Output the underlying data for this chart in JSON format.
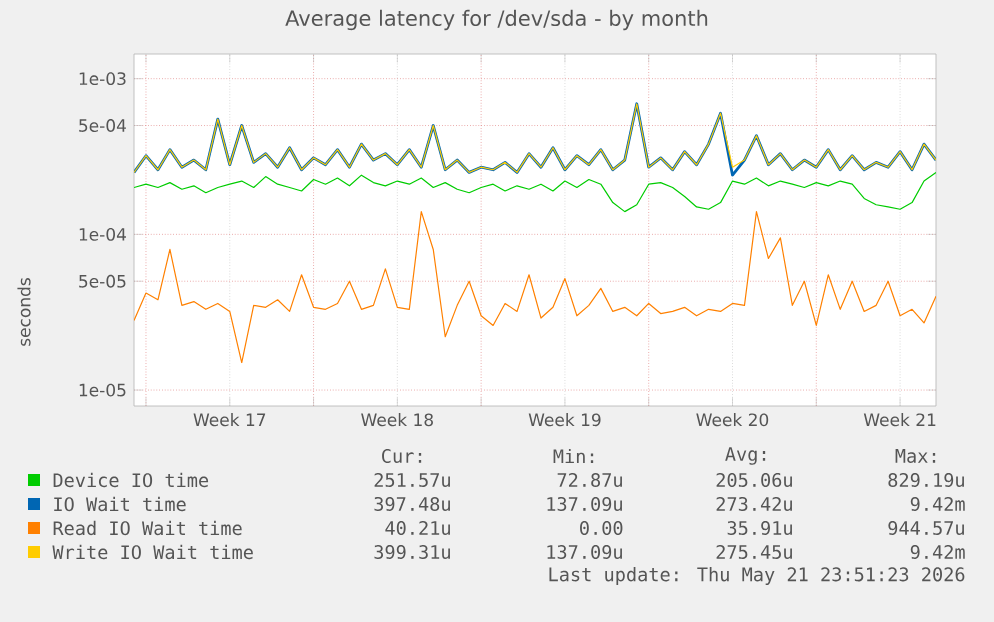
{
  "chart_data": {
    "type": "line",
    "title": "Average latency for /dev/sda - by month",
    "ylabel": "seconds",
    "log": "y",
    "ylim": [
      7.9e-06,
      0.00144
    ],
    "categories": [
      null,
      null,
      null,
      null,
      null,
      null,
      null,
      null,
      "Week 17",
      null,
      null,
      null,
      null,
      null,
      null,
      null,
      null,
      null,
      null,
      null,
      null,
      null,
      "Week 18",
      null,
      null,
      null,
      null,
      null,
      null,
      null,
      null,
      null,
      null,
      null,
      null,
      null,
      "Week 19",
      null,
      null,
      null,
      null,
      null,
      null,
      null,
      null,
      null,
      null,
      null,
      null,
      null,
      "Week 20",
      null,
      null,
      null,
      null,
      null,
      null,
      null,
      null,
      null,
      null,
      null,
      null,
      null,
      "Week 21",
      null,
      null,
      null
    ],
    "yticks": [
      {
        "value": 1e-05,
        "label": "1e-05"
      },
      {
        "value": 5e-05,
        "label": "5e-05"
      },
      {
        "value": 0.0001,
        "label": "1e-04"
      },
      {
        "value": 0.0005,
        "label": "5e-04"
      },
      {
        "value": 0.001,
        "label": "1e-03"
      }
    ],
    "grid": true,
    "legend": "bottom",
    "series": [
      {
        "name": "Device IO time",
        "color": "#00cc00",
        "values": [
          0.0002,
          0.00021,
          0.0002,
          0.000215,
          0.000195,
          0.000205,
          0.000185,
          0.0002,
          0.00021,
          0.00022,
          0.0002,
          0.000235,
          0.00021,
          0.0002,
          0.00019,
          0.000225,
          0.00021,
          0.00023,
          0.000205,
          0.00024,
          0.000215,
          0.000205,
          0.00022,
          0.00021,
          0.00023,
          0.0002,
          0.000215,
          0.000195,
          0.000185,
          0.0002,
          0.00021,
          0.00019,
          0.000205,
          0.000195,
          0.00021,
          0.00019,
          0.00022,
          0.0002,
          0.000225,
          0.00021,
          0.00016,
          0.00014,
          0.000155,
          0.00021,
          0.000215,
          0.0002,
          0.000175,
          0.00015,
          0.000145,
          0.00016,
          0.00022,
          0.00021,
          0.00023,
          0.000205,
          0.00022,
          0.00021,
          0.0002,
          0.000215,
          0.000205,
          0.00022,
          0.00021,
          0.00017,
          0.000155,
          0.00015,
          0.000145,
          0.00016,
          0.00022,
          0.00025
        ]
      },
      {
        "name": "IO Wait time",
        "color": "#0066b3",
        "values": [
          0.00025,
          0.00032,
          0.00026,
          0.00035,
          0.00027,
          0.0003,
          0.00026,
          0.00055,
          0.00028,
          0.0005,
          0.00029,
          0.00033,
          0.00027,
          0.00036,
          0.00026,
          0.00031,
          0.00028,
          0.00035,
          0.00027,
          0.00038,
          0.0003,
          0.00033,
          0.00028,
          0.00035,
          0.00027,
          0.0005,
          0.00026,
          0.0003,
          0.00025,
          0.00027,
          0.00026,
          0.00029,
          0.00025,
          0.00033,
          0.00027,
          0.00036,
          0.00026,
          0.00032,
          0.00028,
          0.00035,
          0.00026,
          0.0003,
          0.00069,
          0.00027,
          0.00031,
          0.00026,
          0.00034,
          0.00028,
          0.00038,
          0.0006,
          0.00024,
          0.0003,
          0.00043,
          0.00028,
          0.00033,
          0.00026,
          0.0003,
          0.00027,
          0.00035,
          0.00026,
          0.00032,
          0.00026,
          0.00029,
          0.00027,
          0.00034,
          0.00026,
          0.00038,
          0.0003
        ]
      },
      {
        "name": "Read IO Wait time",
        "color": "#ff8000",
        "values": [
          2.8e-05,
          4.2e-05,
          3.8e-05,
          8e-05,
          3.5e-05,
          3.7e-05,
          3.3e-05,
          3.6e-05,
          3.2e-05,
          1.5e-05,
          3.5e-05,
          3.4e-05,
          3.8e-05,
          3.2e-05,
          5.5e-05,
          3.4e-05,
          3.3e-05,
          3.6e-05,
          5e-05,
          3.3e-05,
          3.5e-05,
          6e-05,
          3.4e-05,
          3.3e-05,
          0.00014,
          8e-05,
          2.2e-05,
          3.5e-05,
          5e-05,
          3e-05,
          2.6e-05,
          3.6e-05,
          3.2e-05,
          5.5e-05,
          2.9e-05,
          3.4e-05,
          5.2e-05,
          3e-05,
          3.5e-05,
          4.5e-05,
          3.2e-05,
          3.4e-05,
          3e-05,
          3.6e-05,
          3.1e-05,
          3.2e-05,
          3.4e-05,
          3e-05,
          3.3e-05,
          3.2e-05,
          3.6e-05,
          3.5e-05,
          0.00014,
          7e-05,
          9.5e-05,
          3.5e-05,
          5e-05,
          2.6e-05,
          5.5e-05,
          3.3e-05,
          5e-05,
          3.2e-05,
          3.5e-05,
          5e-05,
          3e-05,
          3.3e-05,
          2.7e-05,
          4e-05
        ]
      },
      {
        "name": "Write IO Wait time",
        "color": "#ffcc00",
        "values": [
          0.00025,
          0.00032,
          0.00026,
          0.00035,
          0.00027,
          0.0003,
          0.00026,
          0.00055,
          0.00028,
          0.0005,
          0.00029,
          0.00033,
          0.00027,
          0.00036,
          0.00026,
          0.00031,
          0.00028,
          0.00035,
          0.00027,
          0.00038,
          0.0003,
          0.00033,
          0.00028,
          0.00035,
          0.00027,
          0.0005,
          0.00026,
          0.0003,
          0.00025,
          0.00027,
          0.00026,
          0.00029,
          0.00025,
          0.00033,
          0.00027,
          0.00036,
          0.00026,
          0.00032,
          0.00028,
          0.00035,
          0.00026,
          0.0003,
          0.00069,
          0.00027,
          0.00031,
          0.00026,
          0.00034,
          0.00028,
          0.00038,
          0.0006,
          0.00027,
          0.0003,
          0.00043,
          0.00028,
          0.00033,
          0.00026,
          0.0003,
          0.00027,
          0.00035,
          0.00026,
          0.00032,
          0.00026,
          0.00029,
          0.00027,
          0.00034,
          0.00026,
          0.00038,
          0.0003
        ]
      }
    ],
    "annotations": [
      "Cur:",
      "Min:",
      "Avg:",
      "Max:",
      "251.57u",
      "72.87u",
      "205.06u",
      "829.19u",
      "397.48u",
      "137.09u",
      "273.42u",
      "9.42m",
      "40.21u",
      "0.00",
      "35.91u",
      "944.57u",
      "399.31u",
      "137.09u",
      "275.45u",
      "9.42m",
      "Last update: Thu May 21 23:51:23 2026"
    ]
  }
}
